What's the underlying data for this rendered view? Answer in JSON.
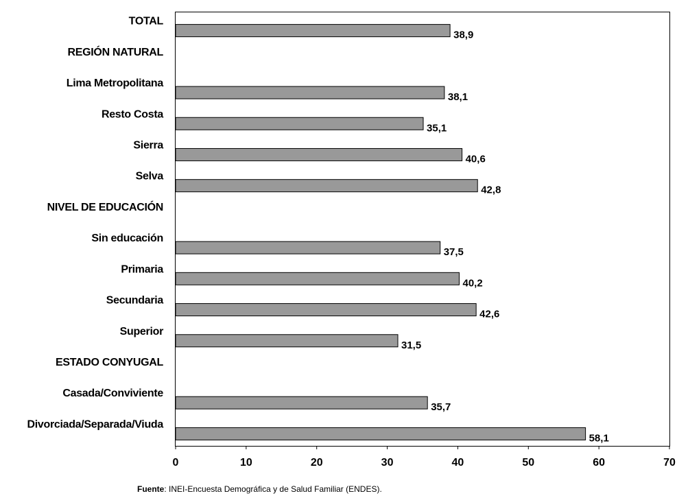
{
  "chart_data": {
    "type": "bar",
    "orientation": "horizontal",
    "categories": [
      "TOTAL",
      "REGIÓN NATURAL",
      "Lima Metropolitana",
      "Resto Costa",
      "Sierra",
      "Selva",
      "NIVEL DE EDUCACIÓN",
      "Sin educación",
      "Primaria",
      "Secundaria",
      "Superior",
      "ESTADO CONYUGAL",
      "Casada/Conviviente",
      "Divorciada/Separada/Viuda"
    ],
    "values": [
      38.9,
      null,
      38.1,
      35.1,
      40.6,
      42.8,
      null,
      37.5,
      40.2,
      42.6,
      31.5,
      null,
      35.7,
      58.1
    ],
    "value_labels": [
      "38,9",
      "",
      "38,1",
      "35,1",
      "40,6",
      "42,8",
      "",
      "37,5",
      "40,2",
      "42,6",
      "31,5",
      "",
      "35,7",
      "58,1"
    ],
    "xlim": [
      0,
      70
    ],
    "xticks": [
      0,
      10,
      20,
      30,
      40,
      50,
      60,
      70
    ],
    "xtick_labels": [
      "0",
      "10",
      "20",
      "30",
      "40",
      "50",
      "60",
      "70"
    ],
    "grid": false,
    "bar_color": "#999999",
    "bar_edge_color": "#000000"
  },
  "source": {
    "label": "Fuente",
    "text": ": INEI-Encuesta Demográfica y de Salud Familiar (ENDES)."
  }
}
